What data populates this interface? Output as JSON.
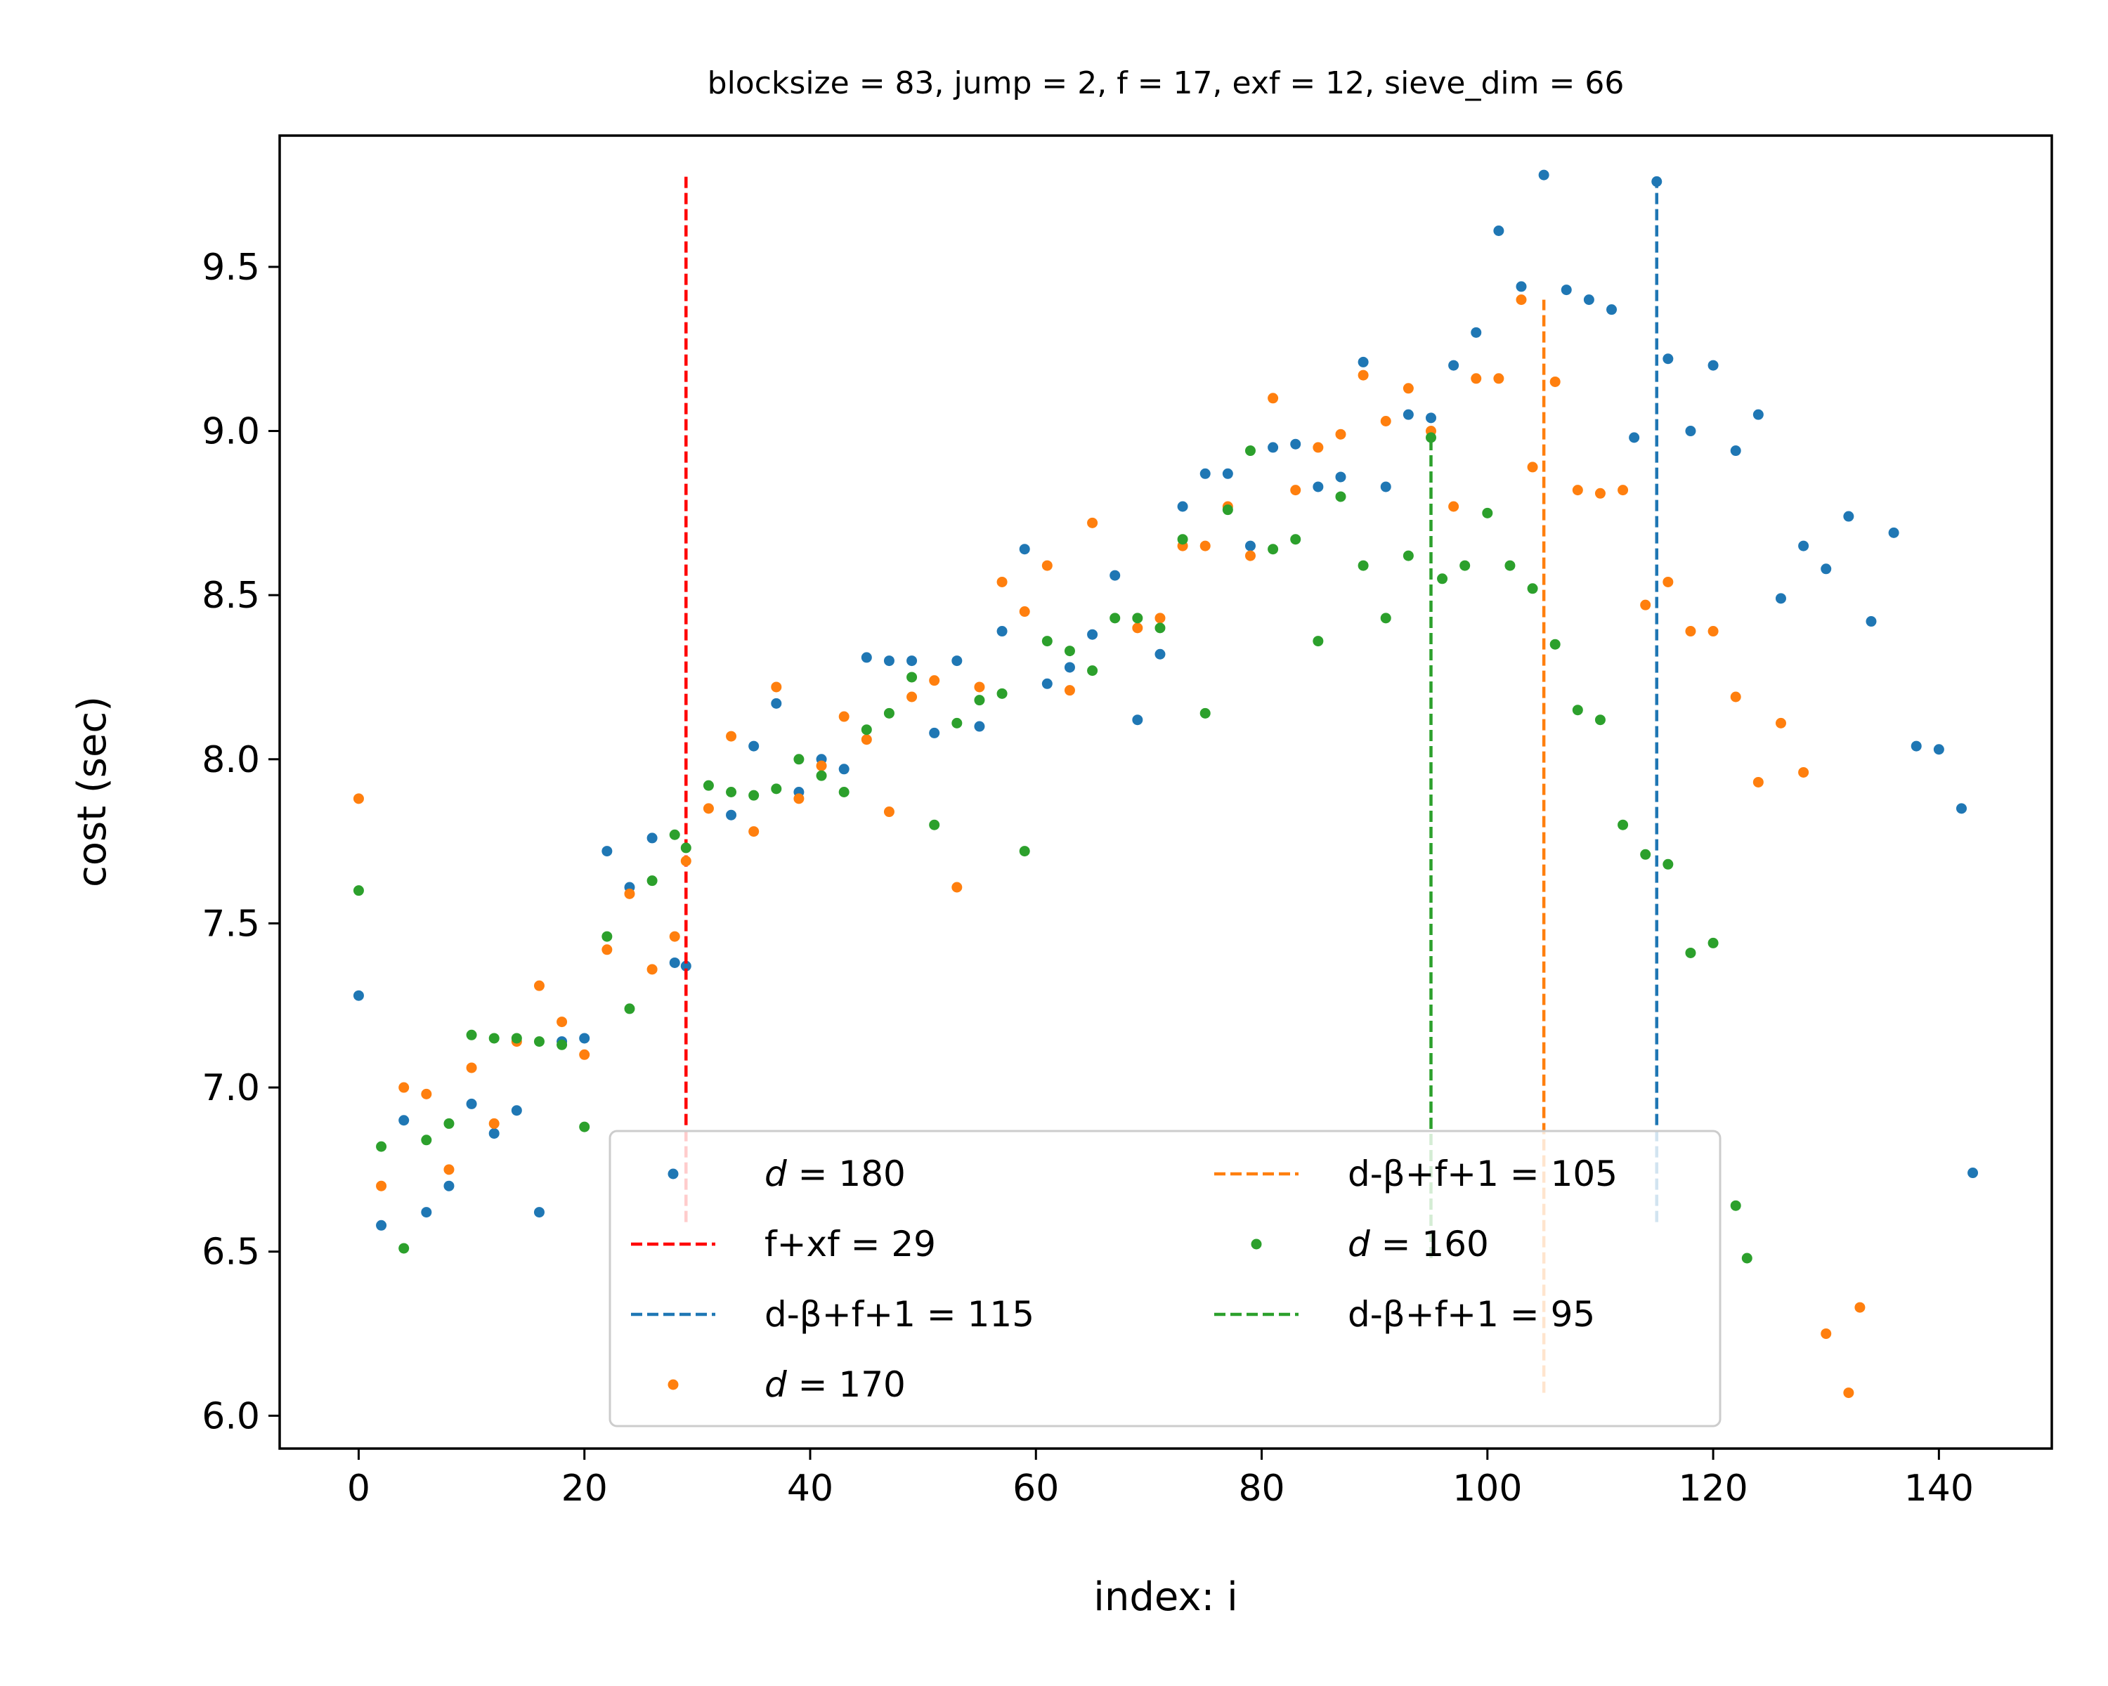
{
  "chart_data": {
    "type": "scatter",
    "title": "blocksize = 83, jump = 2, f = 17, exf = 12, sieve_dim = 66",
    "xlabel": "index: i",
    "ylabel": "cost (sec)",
    "xlim": [
      -7,
      150
    ],
    "ylim": [
      5.9,
      9.9
    ],
    "xticks": [
      0,
      20,
      40,
      60,
      80,
      100,
      120,
      140
    ],
    "yticks": [
      6.0,
      6.5,
      7.0,
      7.5,
      8.0,
      8.5,
      9.0,
      9.5
    ],
    "xtick_labels": [
      "0",
      "20",
      "40",
      "60",
      "80",
      "100",
      "120",
      "140"
    ],
    "ytick_labels": [
      "6.0",
      "6.5",
      "7.0",
      "7.5",
      "8.0",
      "8.5",
      "9.0",
      "9.5"
    ],
    "grid": false,
    "legend_position": "lower-center",
    "legend_columns": 2,
    "series": [
      {
        "kind": "scatter",
        "color": "#1f77b4",
        "legend_var": "d",
        "legend_rest": " = 180",
        "x": [
          0,
          2,
          4,
          6,
          8,
          10,
          12,
          14,
          16,
          18,
          20,
          22,
          24,
          26,
          28,
          29,
          33,
          35,
          37,
          39,
          41,
          43,
          45,
          47,
          49,
          51,
          53,
          55,
          57,
          59,
          61,
          63,
          65,
          67,
          69,
          71,
          73,
          75,
          77,
          79,
          81,
          83,
          85,
          87,
          89,
          91,
          93,
          95,
          97,
          99,
          101,
          103,
          105,
          107,
          109,
          111,
          113,
          115,
          116,
          118,
          120,
          122,
          124,
          126,
          128,
          130,
          132,
          134,
          136,
          138,
          140,
          142,
          143
        ],
        "y": [
          7.28,
          6.58,
          6.9,
          6.62,
          6.7,
          6.95,
          6.86,
          6.93,
          6.62,
          7.14,
          7.15,
          7.72,
          7.61,
          7.76,
          7.38,
          7.37,
          7.83,
          8.04,
          8.17,
          7.9,
          8.0,
          7.97,
          8.31,
          8.3,
          8.3,
          8.08,
          8.3,
          8.1,
          8.39,
          8.64,
          8.23,
          8.28,
          8.38,
          8.56,
          8.12,
          8.32,
          8.77,
          8.87,
          8.87,
          8.65,
          8.95,
          8.96,
          8.83,
          8.86,
          9.21,
          8.83,
          9.05,
          9.04,
          9.2,
          9.3,
          9.61,
          9.44,
          9.78,
          9.43,
          9.4,
          9.37,
          8.98,
          9.76,
          9.22,
          9.0,
          9.2,
          8.94,
          9.05,
          8.49,
          8.65,
          8.58,
          8.74,
          8.42,
          8.69,
          8.04,
          8.03,
          7.85,
          6.74
        ]
      },
      {
        "kind": "vline",
        "color": "#ff0000",
        "legend_var": "",
        "legend_rest": "f+xf = 29",
        "x": 29,
        "y_range": [
          6.59,
          9.78
        ]
      },
      {
        "kind": "vline",
        "color": "#1f77b4",
        "legend_var": "",
        "legend_rest": "d-β+f+1 = 115",
        "x": 115,
        "y_range": [
          6.59,
          9.78
        ]
      },
      {
        "kind": "scatter",
        "color": "#ff7f0e",
        "legend_var": "d",
        "legend_rest": " = 170",
        "x": [
          0,
          2,
          4,
          6,
          8,
          10,
          12,
          14,
          16,
          18,
          20,
          22,
          24,
          26,
          28,
          29,
          31,
          33,
          35,
          37,
          39,
          41,
          43,
          45,
          47,
          49,
          51,
          53,
          55,
          57,
          59,
          61,
          63,
          65,
          69,
          71,
          73,
          75,
          77,
          79,
          81,
          83,
          85,
          87,
          89,
          91,
          93,
          95,
          97,
          99,
          101,
          103,
          104,
          106,
          108,
          110,
          112,
          114,
          116,
          118,
          120,
          122,
          124,
          126,
          128,
          130,
          132,
          133
        ],
        "y": [
          7.88,
          6.7,
          7.0,
          6.98,
          6.75,
          7.06,
          6.89,
          7.14,
          7.31,
          7.2,
          7.1,
          7.42,
          7.59,
          7.36,
          7.46,
          7.69,
          7.85,
          8.07,
          7.78,
          8.22,
          7.88,
          7.98,
          8.13,
          8.06,
          7.84,
          8.19,
          8.24,
          7.61,
          8.22,
          8.54,
          8.45,
          8.59,
          8.21,
          8.72,
          8.4,
          8.43,
          8.65,
          8.65,
          8.77,
          8.62,
          9.1,
          8.82,
          8.95,
          8.99,
          9.17,
          9.03,
          9.13,
          9.0,
          8.77,
          9.16,
          9.16,
          9.4,
          8.89,
          9.15,
          8.82,
          8.81,
          8.82,
          8.47,
          8.54,
          8.39,
          8.39,
          8.19,
          7.93,
          8.11,
          7.96,
          6.25,
          6.07,
          6.33
        ]
      },
      {
        "kind": "vline",
        "color": "#ff7f0e",
        "legend_var": "",
        "legend_rest": "d-β+f+1 = 105",
        "x": 105,
        "y_range": [
          6.07,
          9.4
        ]
      },
      {
        "kind": "scatter",
        "color": "#2ca02c",
        "legend_var": "d",
        "legend_rest": " = 160",
        "x": [
          0,
          2,
          4,
          6,
          8,
          10,
          12,
          14,
          16,
          18,
          20,
          22,
          24,
          26,
          28,
          29,
          31,
          33,
          35,
          37,
          39,
          41,
          43,
          45,
          47,
          49,
          51,
          53,
          55,
          57,
          59,
          61,
          63,
          65,
          67,
          69,
          71,
          73,
          75,
          77,
          79,
          81,
          83,
          85,
          87,
          89,
          91,
          93,
          95,
          96,
          98,
          100,
          102,
          104,
          106,
          108,
          110,
          112,
          114,
          116,
          118,
          120,
          122,
          123
        ],
        "y": [
          7.6,
          6.82,
          6.51,
          6.84,
          6.89,
          7.16,
          7.15,
          7.15,
          7.14,
          7.13,
          6.88,
          7.46,
          7.24,
          7.63,
          7.77,
          7.73,
          7.92,
          7.9,
          7.89,
          7.91,
          8.0,
          7.95,
          7.9,
          8.09,
          8.14,
          8.25,
          7.8,
          8.11,
          8.18,
          8.2,
          7.72,
          8.36,
          8.33,
          8.27,
          8.43,
          8.43,
          8.4,
          8.67,
          8.14,
          8.76,
          8.94,
          8.64,
          8.67,
          8.36,
          8.8,
          8.59,
          8.43,
          8.62,
          8.98,
          8.55,
          8.59,
          8.75,
          8.59,
          8.52,
          8.35,
          8.15,
          8.12,
          7.8,
          7.71,
          7.68,
          7.41,
          7.44,
          6.64,
          6.48
        ]
      },
      {
        "kind": "vline",
        "color": "#2ca02c",
        "legend_var": "",
        "legend_rest": "d-β+f+1 = 95",
        "x": 95,
        "y_range": [
          6.48,
          8.98
        ]
      }
    ]
  }
}
